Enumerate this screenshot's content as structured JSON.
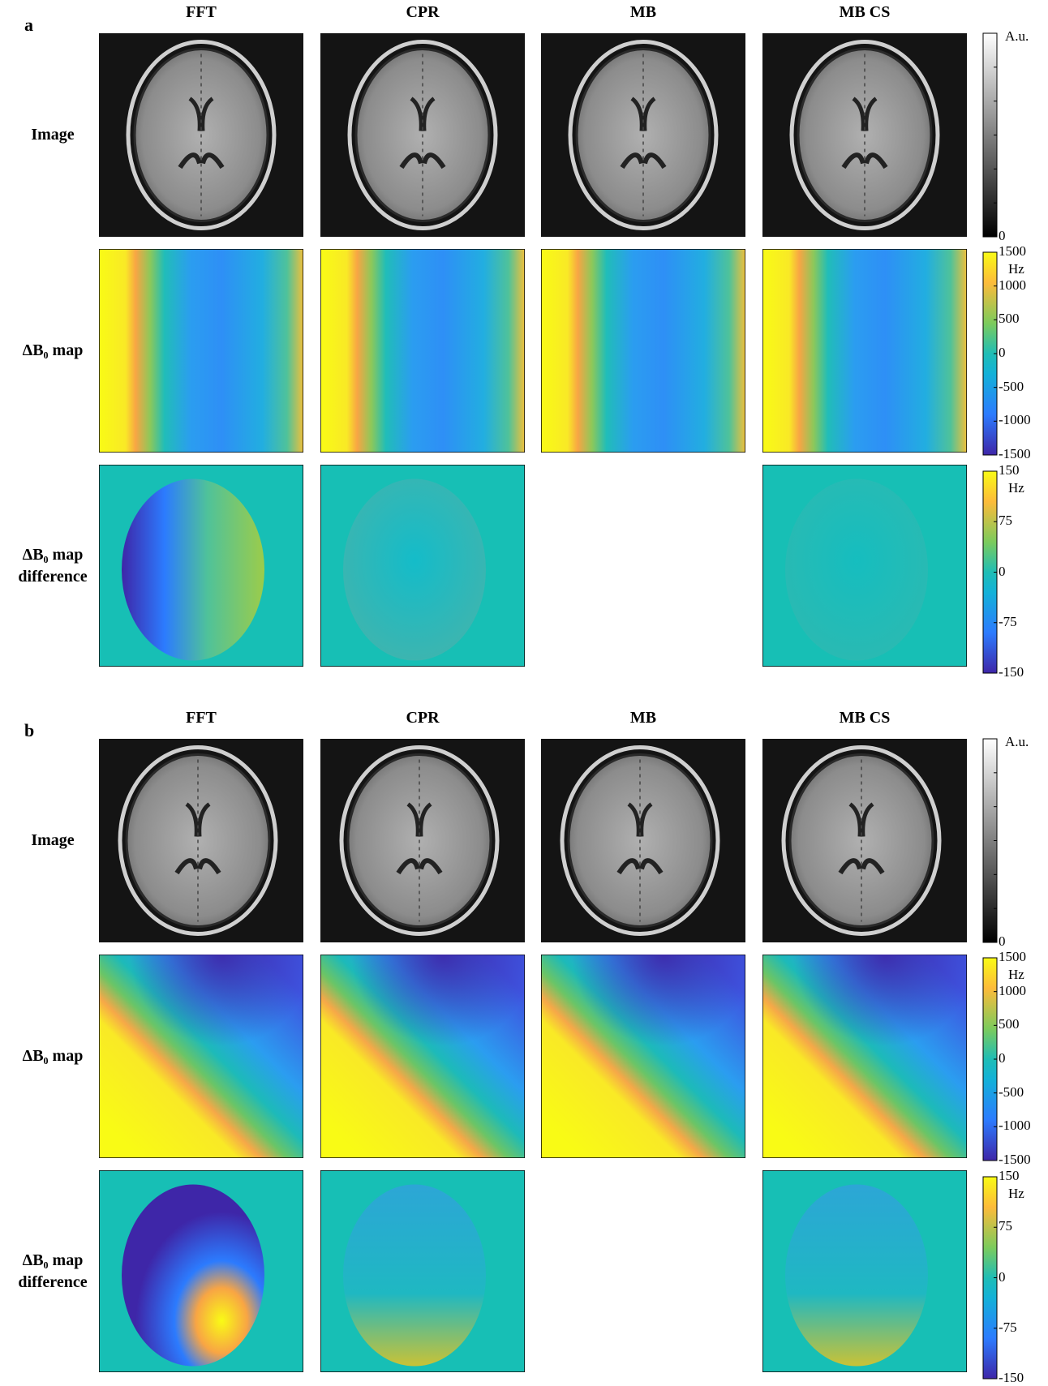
{
  "panels": [
    {
      "label": "a",
      "columns": [
        "FFT",
        "CPR",
        "MB",
        "MB CS"
      ],
      "rows": [
        [
          "Image"
        ],
        [
          "ΔB₀ map"
        ],
        [
          "ΔB₀ map",
          "difference"
        ]
      ],
      "colorbars": [
        {
          "unit": "A.u.",
          "ticks": [
            0
          ]
        },
        {
          "unit": "Hz",
          "lim": [
            -1500,
            1500
          ],
          "ticks": [
            1500,
            1000,
            500,
            0,
            -500,
            -1000,
            -1500
          ]
        },
        {
          "unit": "Hz",
          "lim": [
            -150,
            150
          ],
          "ticks": [
            150,
            75,
            0,
            -75,
            -150
          ]
        }
      ]
    },
    {
      "label": "b",
      "columns": [
        "FFT",
        "CPR",
        "MB",
        "MB CS"
      ],
      "rows": [
        [
          "Image"
        ],
        [
          "ΔB₀ map"
        ],
        [
          "ΔB₀ map",
          "difference"
        ]
      ],
      "colorbars": [
        {
          "unit": "A.u.",
          "ticks": [
            0
          ]
        },
        {
          "unit": "Hz",
          "lim": [
            -1500,
            1500
          ],
          "ticks": [
            1500,
            1000,
            500,
            0,
            -500,
            -1000,
            -1500
          ]
        },
        {
          "unit": "Hz",
          "lim": [
            -150,
            150
          ],
          "ticks": [
            150,
            75,
            0,
            -75,
            -150
          ]
        }
      ]
    }
  ]
}
